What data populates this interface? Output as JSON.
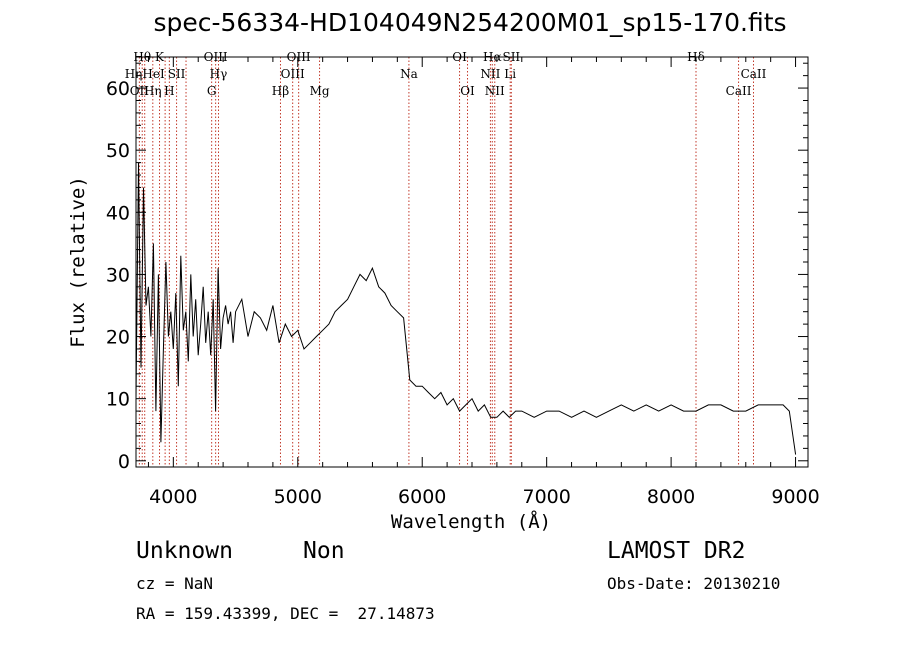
{
  "chart_data": {
    "type": "line",
    "title": "spec-56334-HD104049N254200M01_sp15-170.fits",
    "xlabel": "Wavelength (Å)",
    "ylabel": "Flux (relative)",
    "xlim": [
      3700,
      9100
    ],
    "ylim": [
      -1,
      65
    ],
    "x_ticks": [
      4000,
      5000,
      6000,
      7000,
      8000,
      9000
    ],
    "y_ticks": [
      0,
      10,
      20,
      30,
      40,
      50,
      60
    ],
    "grid": false,
    "series": [
      {
        "x": [
          3700,
          3720,
          3740,
          3760,
          3780,
          3800,
          3820,
          3840,
          3860,
          3880,
          3900,
          3920,
          3940,
          3960,
          3980,
          4000,
          4020,
          4040,
          4060,
          4080,
          4100,
          4120,
          4140,
          4160,
          4180,
          4200,
          4220,
          4240,
          4260,
          4280,
          4300,
          4320,
          4340,
          4360,
          4380,
          4400,
          4420,
          4440,
          4460,
          4480,
          4500,
          4550,
          4600,
          4650,
          4700,
          4750,
          4800,
          4850,
          4900,
          4950,
          5000,
          5050,
          5100,
          5150,
          5200,
          5250,
          5300,
          5350,
          5400,
          5450,
          5500,
          5550,
          5600,
          5650,
          5700,
          5750,
          5800,
          5850,
          5900,
          5950,
          6000,
          6050,
          6100,
          6150,
          6200,
          6250,
          6300,
          6350,
          6400,
          6450,
          6500,
          6550,
          6600,
          6650,
          6700,
          6750,
          6800,
          6900,
          7000,
          7100,
          7200,
          7300,
          7400,
          7500,
          7600,
          7700,
          7800,
          7900,
          8000,
          8100,
          8200,
          8300,
          8400,
          8500,
          8600,
          8700,
          8800,
          8900,
          8950,
          9000
        ],
        "y": [
          10,
          48,
          15,
          44,
          25,
          28,
          20,
          35,
          8,
          30,
          3,
          18,
          32,
          20,
          24,
          18,
          27,
          12,
          33,
          21,
          24,
          16,
          30,
          20,
          26,
          17,
          22,
          28,
          19,
          24,
          17,
          26,
          8,
          31,
          18,
          23,
          25,
          22,
          24,
          19,
          24,
          26,
          20,
          24,
          23,
          21,
          25,
          19,
          22,
          20,
          21,
          18,
          19,
          20,
          21,
          22,
          24,
          25,
          26,
          28,
          30,
          29,
          31,
          28,
          27,
          25,
          24,
          23,
          13,
          12,
          12,
          11,
          10,
          11,
          9,
          10,
          8,
          9,
          10,
          8,
          9,
          7,
          7,
          8,
          7,
          8,
          8,
          7,
          8,
          8,
          7,
          8,
          7,
          8,
          9,
          8,
          9,
          8,
          9,
          8,
          8,
          9,
          9,
          8,
          8,
          9,
          9,
          9,
          8,
          1
        ]
      }
    ],
    "emission_lines": [
      {
        "x": 3727,
        "label": "OII",
        "row": 3
      },
      {
        "x": 3750,
        "label": "Hθ",
        "row": 1
      },
      {
        "x": 3770,
        "label": "HηHeI",
        "row": 2
      },
      {
        "x": 3835,
        "label": "Hη",
        "row": 3
      },
      {
        "x": 3889,
        "label": "K",
        "row": 1
      },
      {
        "x": 3934,
        "label": "",
        "row": 0
      },
      {
        "x": 3968,
        "label": "H",
        "row": 3
      },
      {
        "x": 4026,
        "label": "SII",
        "row": 2
      },
      {
        "x": 4102,
        "label": "",
        "row": 0
      },
      {
        "x": 4340,
        "label": "OIII",
        "row": 1
      },
      {
        "x": 4363,
        "label": "Hγ",
        "row": 2
      },
      {
        "x": 4308,
        "label": "G",
        "row": 3
      },
      {
        "x": 4861,
        "label": "Hβ",
        "row": 3
      },
      {
        "x": 4959,
        "label": "OIII",
        "row": 2
      },
      {
        "x": 5007,
        "label": "OIII",
        "row": 1
      },
      {
        "x": 5175,
        "label": "Mg",
        "row": 3
      },
      {
        "x": 5893,
        "label": "Na",
        "row": 2
      },
      {
        "x": 6300,
        "label": "OI",
        "row": 1
      },
      {
        "x": 6364,
        "label": "OI",
        "row": 3
      },
      {
        "x": 6548,
        "label": "NII",
        "row": 2
      },
      {
        "x": 6563,
        "label": "Hα",
        "row": 1
      },
      {
        "x": 6583,
        "label": "NII",
        "row": 3
      },
      {
        "x": 6707,
        "label": "Li",
        "row": 2
      },
      {
        "x": 6716,
        "label": "SII",
        "row": 1
      },
      {
        "x": 8200,
        "label": "Hδ",
        "row": 1
      },
      {
        "x": 8542,
        "label": "CaII",
        "row": 3
      },
      {
        "x": 8662,
        "label": "CaII",
        "row": 2
      }
    ]
  },
  "footer": {
    "class_label": "Unknown",
    "subclass_label": "Non",
    "survey": "LAMOST DR2",
    "redshift": "cz = NaN",
    "obs_date": "Obs-Date: 20130210",
    "coords": "RA = 159.43399, DEC =  27.14873"
  }
}
